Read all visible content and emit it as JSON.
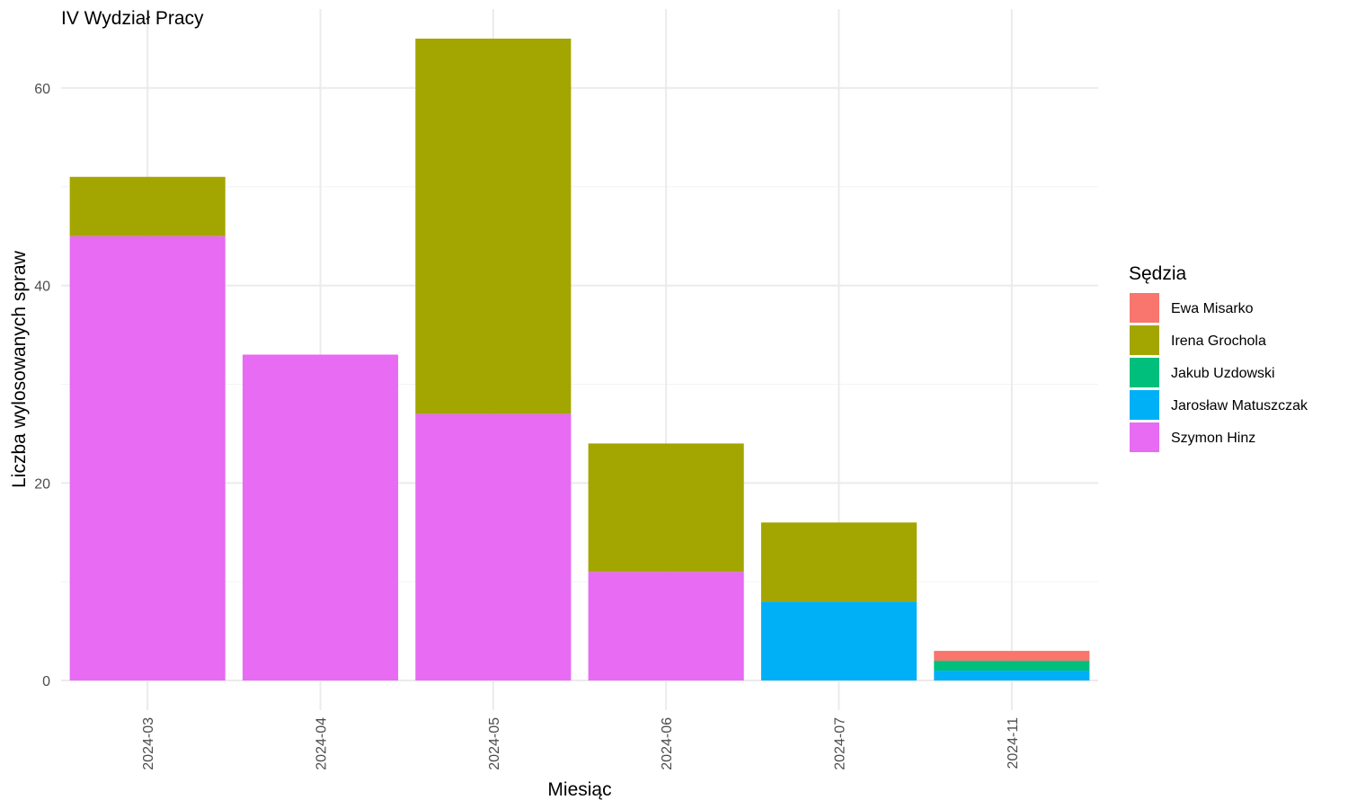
{
  "chart_data": {
    "type": "bar",
    "stacked": true,
    "title": "IV Wydział Pracy",
    "xlabel": "Miesiąc",
    "ylabel": "Liczba wylosowanych spraw",
    "ylim": [
      -3,
      68
    ],
    "y_ticks": [
      0,
      20,
      40,
      60
    ],
    "grid": true,
    "legend": {
      "title": "Sędzia",
      "position": "right"
    },
    "categories": [
      "2024-03",
      "2024-04",
      "2024-05",
      "2024-06",
      "2024-07",
      "2024-11"
    ],
    "series": [
      {
        "name": "Ewa Misarko",
        "color": "#F8766D",
        "values": [
          0,
          0,
          0,
          0,
          0,
          1
        ]
      },
      {
        "name": "Irena Grochola",
        "color": "#A3A500",
        "values": [
          6,
          0,
          38,
          13,
          8,
          0
        ]
      },
      {
        "name": "Jakub Uzdowski",
        "color": "#00BF7D",
        "values": [
          0,
          0,
          0,
          0,
          0,
          1
        ]
      },
      {
        "name": "Jarosław Matuszczak",
        "color": "#00B0F6",
        "values": [
          0,
          0,
          0,
          0,
          8,
          1
        ]
      },
      {
        "name": "Szymon Hinz",
        "color": "#E76BF3",
        "values": [
          45,
          33,
          27,
          11,
          0,
          0
        ]
      }
    ]
  }
}
